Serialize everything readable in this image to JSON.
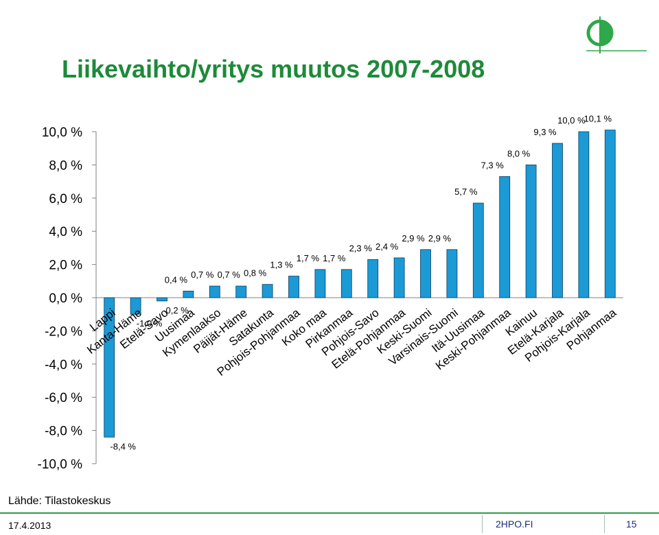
{
  "title": "Liikevaihto/yritys muutos 2007-2008",
  "source": "Lähde: Tilastokeskus",
  "footer": {
    "date": "17.4.2013",
    "site": "2HPO.FI",
    "page": "15"
  },
  "colors": {
    "title": "#1e8a3a",
    "bar": "#1b9ad6",
    "bar_edge": "#0b3c5d",
    "logo": "#2ea84a"
  },
  "logo_icon": "2hpo-logo-icon",
  "chart_data": {
    "type": "bar",
    "title": "",
    "xlabel": "",
    "ylabel": "",
    "ylim": [
      -10,
      10
    ],
    "ytick_values": [
      10,
      8,
      6,
      4,
      2,
      0,
      -2,
      -4,
      -6,
      -8,
      -10
    ],
    "ytick_labels": [
      "10,0 %",
      "8,0 %",
      "6,0 %",
      "4,0 %",
      "2,0 %",
      "0,0 %",
      "-2,0 %",
      "-4,0 %",
      "-6,0 %",
      "-8,0 %",
      "-10,0 %"
    ],
    "grid": false,
    "legend": "none",
    "categories": [
      "Lappi",
      "Kanta-Häme",
      "Etelä-Savo",
      "Uusimaa",
      "Kymenlaakso",
      "Päijät-Häme",
      "Satakunta",
      "Pohjois-Pohjanmaa",
      "Koko maa",
      "Pirkanmaa",
      "Pohjois-Savo",
      "Etelä-Pohjanmaa",
      "Keski-Suomi",
      "Varsinais-Suomi",
      "Itä-Uusimaa",
      "Keski-Pohjanmaa",
      "Kainuu",
      "Etelä-Karjala",
      "Pohjois-Karjala",
      "Pohjanmaa"
    ],
    "values": [
      -8.4,
      -1.0,
      -0.2,
      0.4,
      0.7,
      0.7,
      0.8,
      1.3,
      1.7,
      1.7,
      2.3,
      2.4,
      2.9,
      2.9,
      5.7,
      7.3,
      8.0,
      9.3,
      10.0,
      10.1
    ],
    "data_labels": [
      "-8,4 %",
      "-1,0 %",
      "-0,2 %",
      "0,4 %",
      "0,7 %",
      "0,7 %",
      "0,8 %",
      "1,3 %",
      "1,7 %",
      "1,7 %",
      "2,3 %",
      "2,4 %",
      "2,9 %",
      "2,9 %",
      "5,7 %",
      "7,3 %",
      "8,0 %",
      "9,3 %",
      "10,0 %",
      "10,1 %"
    ]
  }
}
